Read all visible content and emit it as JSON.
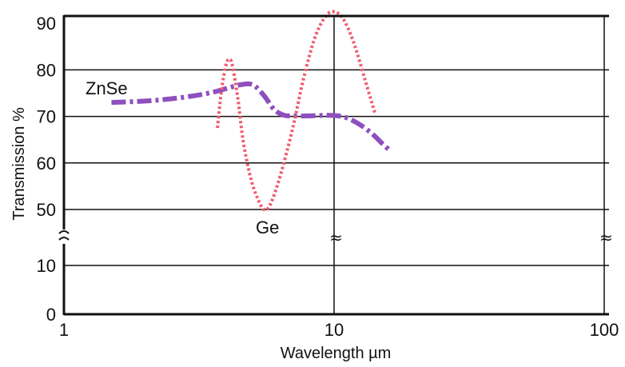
{
  "chart_data": {
    "type": "line",
    "xlabel": "Wavelength µm",
    "ylabel": "Transmission %",
    "x_scale": "log",
    "xlim": [
      1,
      100
    ],
    "x_ticks": [
      "1",
      "10",
      "100"
    ],
    "y_axis_broken": true,
    "y_lower_ticks": [
      "0",
      "10"
    ],
    "y_upper_ticks": [
      "50",
      "60",
      "70",
      "80",
      "90"
    ],
    "y_lower_range": [
      0,
      15
    ],
    "y_upper_range": [
      45,
      90
    ],
    "grid": true,
    "break_symbol": "≈",
    "series": [
      {
        "name": "ZnSe",
        "color": "#8e4fbf",
        "style": "dash-dot",
        "points": [
          [
            1.5,
            73
          ],
          [
            2,
            73.3
          ],
          [
            2.5,
            73.8
          ],
          [
            3,
            74.4
          ],
          [
            3.5,
            75.1
          ],
          [
            4,
            76
          ],
          [
            4.5,
            76.8
          ],
          [
            5,
            76.8
          ],
          [
            5.5,
            74.5
          ],
          [
            6,
            71.5
          ],
          [
            6.5,
            70.3
          ],
          [
            7,
            70.1
          ],
          [
            8,
            70.1
          ],
          [
            9,
            70.2
          ],
          [
            10,
            70.2
          ],
          [
            11,
            69.8
          ],
          [
            12,
            68.8
          ],
          [
            13,
            67.5
          ],
          [
            14,
            66
          ],
          [
            15,
            64.3
          ],
          [
            16,
            62.8
          ]
        ]
      },
      {
        "name": "Ge",
        "color": "#f25a6b",
        "style": "dotted",
        "points": [
          [
            3.7,
            67.5
          ],
          [
            3.8,
            74
          ],
          [
            3.9,
            78.5
          ],
          [
            4,
            81.5
          ],
          [
            4.1,
            82.3
          ],
          [
            4.2,
            81
          ],
          [
            4.4,
            74
          ],
          [
            4.6,
            65
          ],
          [
            4.9,
            57
          ],
          [
            5.2,
            52.5
          ],
          [
            5.5,
            50
          ],
          [
            5.8,
            51
          ],
          [
            6.3,
            57
          ],
          [
            7,
            67
          ],
          [
            7.7,
            78
          ],
          [
            8.5,
            87
          ],
          [
            9.3,
            91.5
          ],
          [
            10,
            92.5
          ],
          [
            10.8,
            91
          ],
          [
            11.8,
            86
          ],
          [
            13,
            78
          ],
          [
            14.2,
            70.5
          ]
        ]
      }
    ]
  }
}
